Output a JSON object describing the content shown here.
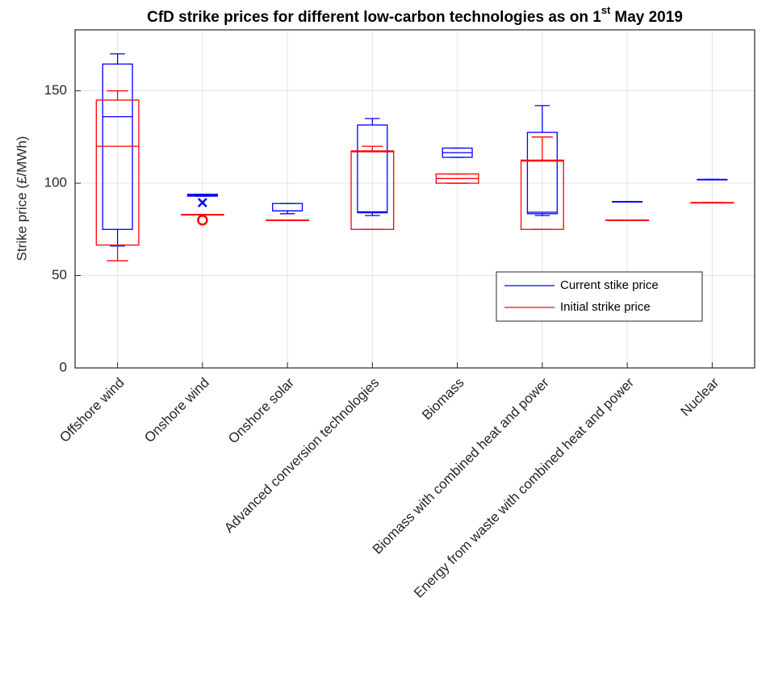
{
  "chart_data": {
    "type": "box",
    "title": [
      "CfD strike prices for different low-carbon technologies as on 1",
      "st",
      "May 2019"
    ],
    "ylabel": "Strike price (£/MWh)",
    "categories": [
      "Offshore wind",
      "Onshore wind",
      "Onshore solar",
      "Advanced conversion technologies",
      "Biomass",
      "Biomass with combined heat and power",
      "Energy from waste with combined heat and power",
      "Nuclear"
    ],
    "ylim": [
      0,
      183
    ],
    "yticks": [
      0,
      50,
      100,
      150
    ],
    "grid": true,
    "legend": "lower right",
    "series": [
      {
        "name": "Current stike price",
        "color": "#0000ff",
        "marker": "x",
        "boxes": [
          {
            "low": 66,
            "q1": 75,
            "median": 136,
            "q3": 164.5,
            "high": 170
          },
          {
            "low": 93,
            "q1": 93,
            "median": 93.5,
            "q3": 94,
            "high": 94,
            "outliers": [
              89.5
            ]
          },
          {
            "low": 83.5,
            "q1": 85,
            "median": 85,
            "q3": 89,
            "high": 89
          },
          {
            "low": 82.5,
            "q1": 84,
            "median": 84.5,
            "q3": 131.5,
            "high": 135
          },
          {
            "low": 114,
            "q1": 114,
            "median": 116.5,
            "q3": 119,
            "high": 119
          },
          {
            "low": 82.5,
            "q1": 83.5,
            "median": 84.3,
            "q3": 127.5,
            "high": 142
          },
          {
            "low": 90,
            "q1": 90,
            "median": 90,
            "q3": 90,
            "high": 90
          },
          {
            "low": 102,
            "q1": 102,
            "median": 102,
            "q3": 102,
            "high": 102
          }
        ]
      },
      {
        "name": "Initial strike price",
        "color": "#ff0000",
        "marker": "o",
        "boxes": [
          {
            "low": 58,
            "q1": 66.5,
            "median": 120,
            "q3": 145,
            "high": 150
          },
          {
            "low": 83,
            "q1": 83,
            "median": 83,
            "q3": 83,
            "high": 83,
            "outliers": [
              80
            ]
          },
          {
            "low": 80,
            "q1": 80,
            "median": 80,
            "q3": 80,
            "high": 80
          },
          {
            "low": 75,
            "q1": 75,
            "median": 117,
            "q3": 117.5,
            "high": 120
          },
          {
            "low": 100,
            "q1": 100,
            "median": 102.5,
            "q3": 105,
            "high": 105
          },
          {
            "low": 75,
            "q1": 75,
            "median": 112,
            "q3": 112.5,
            "high": 125
          },
          {
            "low": 80,
            "q1": 80,
            "median": 80,
            "q3": 80,
            "high": 80
          },
          {
            "low": 89.5,
            "q1": 89.5,
            "median": 89.5,
            "q3": 89.5,
            "high": 89.5
          }
        ]
      }
    ]
  }
}
